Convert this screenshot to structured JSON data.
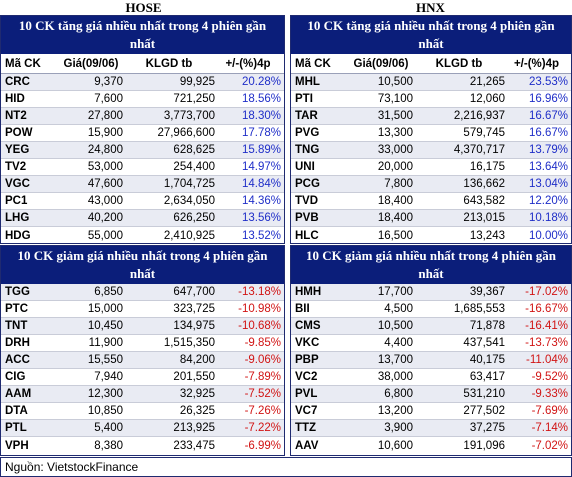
{
  "exchanges": {
    "hose": "HOSE",
    "hnx": "HNX"
  },
  "sections": {
    "hose_up": {
      "title": "10 CK tăng giá nhiều nhất trong 4 phiên gần nhất",
      "headers": [
        "Mã CK",
        "Giá(09/06)",
        "KLGD tb",
        "+/-(%)4p"
      ],
      "rows": [
        [
          "CRC",
          "9,370",
          "99,925",
          "20.28%"
        ],
        [
          "HID",
          "7,600",
          "721,250",
          "18.56%"
        ],
        [
          "NT2",
          "27,800",
          "3,773,700",
          "18.30%"
        ],
        [
          "POW",
          "15,900",
          "27,966,600",
          "17.78%"
        ],
        [
          "YEG",
          "24,800",
          "628,625",
          "15.89%"
        ],
        [
          "TV2",
          "53,000",
          "254,400",
          "14.97%"
        ],
        [
          "VGC",
          "47,600",
          "1,704,725",
          "14.84%"
        ],
        [
          "PC1",
          "43,000",
          "2,634,050",
          "14.36%"
        ],
        [
          "LHG",
          "40,200",
          "626,250",
          "13.56%"
        ],
        [
          "HDG",
          "55,000",
          "2,410,925",
          "13.52%"
        ]
      ]
    },
    "hnx_up": {
      "title": "10 CK tăng giá nhiều nhất trong 4 phiên gần nhất",
      "headers": [
        "Mã CK",
        "Giá(09/06)",
        "KLGD tb",
        "+/-(%)4p"
      ],
      "rows": [
        [
          "MHL",
          "10,500",
          "21,265",
          "23.53%"
        ],
        [
          "PTI",
          "73,100",
          "12,060",
          "16.96%"
        ],
        [
          "TAR",
          "31,500",
          "2,216,937",
          "16.67%"
        ],
        [
          "PVG",
          "13,300",
          "579,745",
          "16.67%"
        ],
        [
          "TNG",
          "33,000",
          "4,370,717",
          "13.79%"
        ],
        [
          "UNI",
          "20,000",
          "16,175",
          "13.64%"
        ],
        [
          "PCG",
          "7,800",
          "136,662",
          "13.04%"
        ],
        [
          "TVD",
          "18,400",
          "643,582",
          "12.20%"
        ],
        [
          "PVB",
          "18,400",
          "213,015",
          "10.18%"
        ],
        [
          "HLC",
          "16,500",
          "13,243",
          "10.00%"
        ]
      ]
    },
    "hose_down": {
      "title": "10 CK giảm giá nhiều nhất trong 4 phiên gần nhất",
      "rows": [
        [
          "TGG",
          "6,850",
          "647,700",
          "-13.18%"
        ],
        [
          "PTC",
          "15,000",
          "323,725",
          "-10.98%"
        ],
        [
          "TNT",
          "10,450",
          "134,975",
          "-10.68%"
        ],
        [
          "DRH",
          "11,900",
          "1,515,350",
          "-9.85%"
        ],
        [
          "ACC",
          "15,550",
          "84,200",
          "-9.06%"
        ],
        [
          "CIG",
          "7,940",
          "201,550",
          "-7.89%"
        ],
        [
          "AAM",
          "12,300",
          "32,925",
          "-7.52%"
        ],
        [
          "DTA",
          "10,850",
          "26,325",
          "-7.26%"
        ],
        [
          "PTL",
          "5,400",
          "213,925",
          "-7.22%"
        ],
        [
          "VPH",
          "8,380",
          "233,475",
          "-6.99%"
        ]
      ]
    },
    "hnx_down": {
      "title": "10 CK giảm giá nhiều nhất trong 4 phiên gần nhất",
      "rows": [
        [
          "HMH",
          "17,700",
          "39,367",
          "-17.02%"
        ],
        [
          "BII",
          "4,500",
          "1,685,553",
          "-16.67%"
        ],
        [
          "CMS",
          "10,500",
          "71,878",
          "-16.41%"
        ],
        [
          "VKC",
          "4,400",
          "437,541",
          "-13.73%"
        ],
        [
          "PBP",
          "13,700",
          "40,175",
          "-11.04%"
        ],
        [
          "VC2",
          "38,000",
          "63,417",
          "-9.52%"
        ],
        [
          "PVL",
          "6,800",
          "531,210",
          "-9.33%"
        ],
        [
          "VC7",
          "13,200",
          "277,502",
          "-7.69%"
        ],
        [
          "TTZ",
          "3,900",
          "37,275",
          "-7.14%"
        ],
        [
          "AAV",
          "10,600",
          "191,096",
          "-7.02%"
        ]
      ]
    }
  },
  "source": "Nguồn: VietstockFinance",
  "colors": {
    "header_bg": "#0b1e7a",
    "positive": "#1f2ec8",
    "negative": "#d11414",
    "row_shade": "#e9ebf3"
  }
}
